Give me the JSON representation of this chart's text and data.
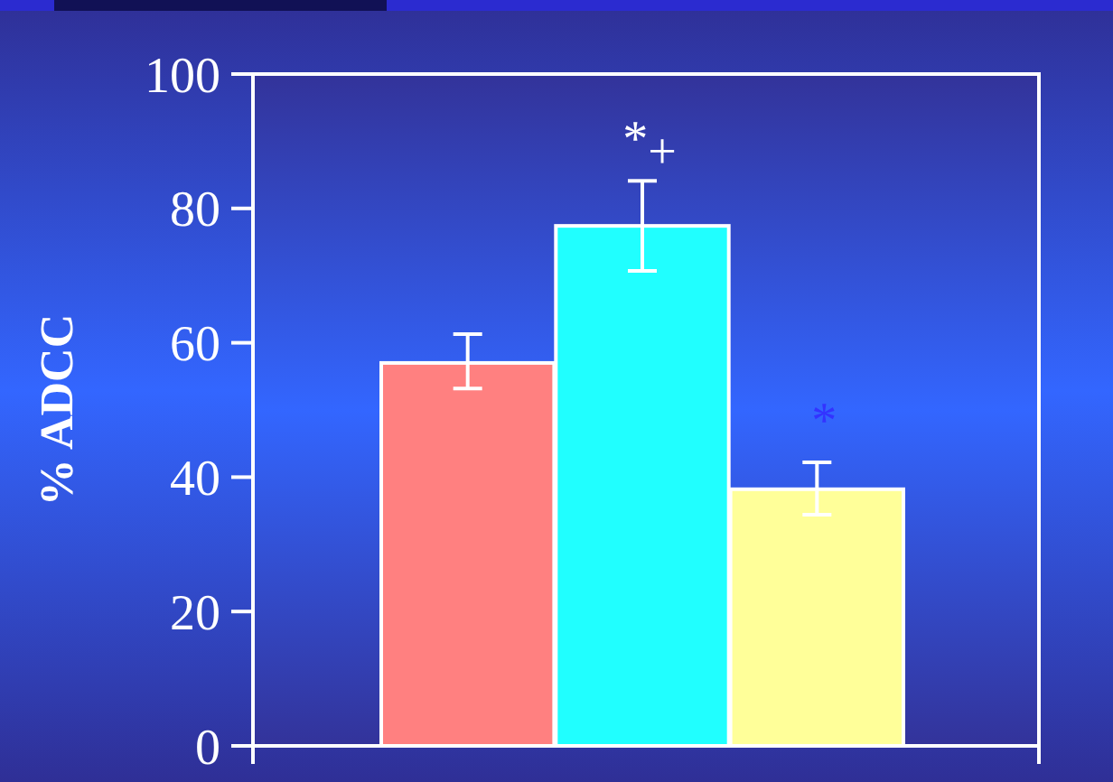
{
  "chart_data": {
    "type": "bar",
    "ylabel": "% ADCC",
    "categories": [
      null,
      null,
      null
    ],
    "values": [
      57,
      77.4,
      38.2
    ],
    "colors": [
      "#ff8080",
      "#20ffff",
      "#ffff99"
    ],
    "errors": [
      [
        53.2,
        61.3
      ],
      [
        70.7,
        84.1
      ],
      [
        34.4,
        42.2
      ]
    ],
    "ylim": [
      0,
      100
    ],
    "yticks": [
      0,
      20,
      40,
      60,
      80,
      100
    ],
    "grid": false,
    "annotations": [
      "*$_{+}$",
      "*"
    ]
  }
}
